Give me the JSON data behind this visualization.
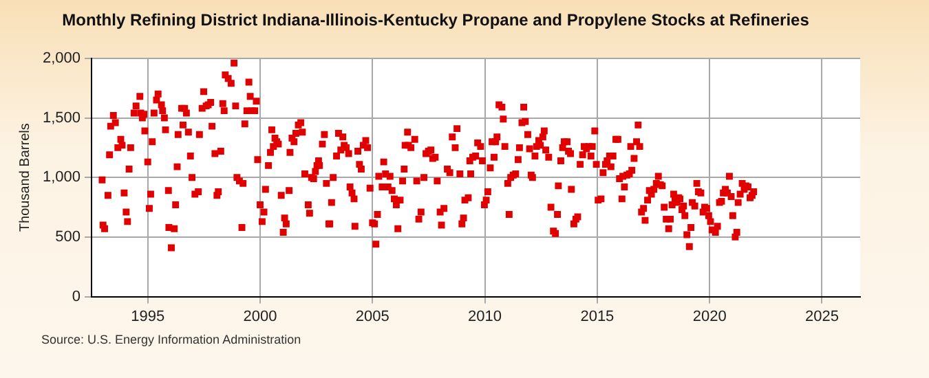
{
  "chart_data": {
    "type": "scatter",
    "title": "Monthly Refining District Indiana-Illinois-Kentucky Propane and Propylene Stocks at Refineries",
    "ylabel": "Thousand Barrels",
    "annotations": [
      "Source: U.S. Energy Information Administration"
    ],
    "color": "#e00000",
    "marker": "square",
    "grid": true,
    "legend": false,
    "xlim": [
      1992.5,
      2026.7
    ],
    "xticks": [
      1995,
      2000,
      2005,
      2010,
      2015,
      2020,
      2025
    ],
    "ylim": [
      0,
      2000
    ],
    "yticks": [
      0,
      500,
      {
        "value": 1000,
        "label": "1,000"
      },
      {
        "value": 1500,
        "label": "1,500"
      },
      {
        "value": 2000,
        "label": "2,000"
      }
    ],
    "x": [
      1992.97,
      1993.01,
      1993.08,
      1993.23,
      1993.3,
      1993.35,
      1993.47,
      1993.56,
      1993.67,
      1993.8,
      1993.86,
      1993.95,
      1994.04,
      1994.1,
      1994.17,
      1994.24,
      1994.39,
      1994.48,
      1994.65,
      1994.69,
      1994.76,
      1994.83,
      1994.87,
      1995,
      1995.07,
      1995.13,
      1995.2,
      1995.28,
      1995.39,
      1995.46,
      1995.61,
      1995.66,
      1995.74,
      1995.79,
      1995.92,
      1995.94,
      1996.05,
      1996.18,
      1996.24,
      1996.31,
      1996.35,
      1996.51,
      1996.57,
      1996.64,
      1996.72,
      1996.81,
      1996.9,
      1996.97,
      1997.1,
      1997.25,
      1997.3,
      1997.42,
      1997.49,
      1997.6,
      1997.69,
      1997.8,
      1997.86,
      1997.99,
      1998.08,
      1998.14,
      1998.25,
      1998.34,
      1998.4,
      1998.45,
      1998.58,
      1998.71,
      1998.84,
      1998.91,
      1998.97,
      1999.08,
      1999.19,
      1999.24,
      1999.32,
      1999.41,
      1999.5,
      1999.56,
      1999.65,
      1999.76,
      1999.83,
      1999.89,
      2000,
      2000.09,
      2000.17,
      2000.24,
      2000.37,
      2000.46,
      2000.52,
      2000.59,
      2000.66,
      2000.74,
      2000.81,
      2000.94,
      2001.03,
      2001.09,
      2001.16,
      2001.29,
      2001.33,
      2001.42,
      2001.51,
      2001.59,
      2001.7,
      2001.81,
      2001.88,
      2001.99,
      2002.14,
      2002.2,
      2002.29,
      2002.38,
      2002.46,
      2002.53,
      2002.6,
      2002.64,
      2002.77,
      2002.86,
      2002.95,
      2003.06,
      2003.1,
      2003.18,
      2003.25,
      2003.4,
      2003.49,
      2003.59,
      2003.68,
      2003.74,
      2003.83,
      2003.94,
      2004,
      2004.09,
      2004.18,
      2004.22,
      2004.35,
      2004.42,
      2004.5,
      2004.59,
      2004.7,
      2004.78,
      2004.89,
      2005,
      2005.09,
      2005.15,
      2005.22,
      2005.28,
      2005.43,
      2005.5,
      2005.58,
      2005.69,
      2005.78,
      2005.87,
      2005.97,
      2006.06,
      2006.13,
      2006.23,
      2006.34,
      2006.41,
      2006.45,
      2006.56,
      2006.6,
      2006.71,
      2006.88,
      2006.97,
      2007.06,
      2007.16,
      2007.29,
      2007.38,
      2007.49,
      2007.6,
      2007.68,
      2007.79,
      2007.88,
      2008.01,
      2008.07,
      2008.18,
      2008.33,
      2008.44,
      2008.55,
      2008.68,
      2008.76,
      2008.89,
      2008.98,
      2009.05,
      2009.11,
      2009.26,
      2009.33,
      2009.37,
      2009.46,
      2009.59,
      2009.68,
      2009.81,
      2009.89,
      2009.98,
      2010.06,
      2010.13,
      2010.24,
      2010.32,
      2010.41,
      2010.48,
      2010.54,
      2010.63,
      2010.76,
      2010.82,
      2010.89,
      2011.02,
      2011.08,
      2011.15,
      2011.26,
      2011.37,
      2011.48,
      2011.54,
      2011.65,
      2011.73,
      2011.8,
      2011.91,
      2011.99,
      2012.06,
      2012.12,
      2012.23,
      2012.3,
      2012.4,
      2012.47,
      2012.58,
      2012.64,
      2012.71,
      2012.84,
      2012.94,
      2013.05,
      2013.14,
      2013.23,
      2013.27,
      2013.38,
      2013.46,
      2013.53,
      2013.66,
      2013.72,
      2013.81,
      2013.85,
      2013.96,
      2014.05,
      2014.13,
      2014.24,
      2014.35,
      2014.42,
      2014.52,
      2014.63,
      2014.72,
      2014.78,
      2014.89,
      2014.96,
      2015.04,
      2015.17,
      2015.26,
      2015.37,
      2015.44,
      2015.55,
      2015.61,
      2015.7,
      2015.83,
      2015.92,
      2015.99,
      2016.1,
      2016.14,
      2016.21,
      2016.32,
      2016.43,
      2016.49,
      2016.54,
      2016.64,
      2016.75,
      2016.82,
      2016.89,
      2016.97,
      2017.06,
      2017.13,
      2017.24,
      2017.32,
      2017.41,
      2017.52,
      2017.63,
      2017.72,
      2017.81,
      2017.89,
      2017.98,
      2018.07,
      2018.18,
      2018.25,
      2018.33,
      2018.4,
      2018.46,
      2018.55,
      2018.62,
      2018.68,
      2018.77,
      2018.84,
      2018.9,
      2018.99,
      2019.1,
      2019.17,
      2019.23,
      2019.34,
      2019.43,
      2019.5,
      2019.61,
      2019.71,
      2019.78,
      2019.87,
      2019.96,
      2020.04,
      2020.11,
      2020.26,
      2020.35,
      2020.44,
      2020.53,
      2020.61,
      2020.7,
      2020.79,
      2020.88,
      2020.96,
      2021.03,
      2021.14,
      2021.21,
      2021.27,
      2021.36,
      2021.45,
      2021.54,
      2021.62,
      2021.71,
      2021.8,
      2021.89,
      2021.96
    ],
    "values": [
      980,
      600,
      570,
      850,
      1190,
      1430,
      1520,
      1460,
      1250,
      1320,
      1270,
      870,
      710,
      630,
      1070,
      1250,
      1540,
      1600,
      1680,
      1540,
      1500,
      1530,
      1390,
      1130,
      740,
      860,
      1300,
      1540,
      1650,
      1700,
      1610,
      1560,
      1500,
      1400,
      890,
      580,
      410,
      570,
      770,
      1090,
      1360,
      1580,
      1440,
      1580,
      1540,
      1380,
      1180,
      1000,
      860,
      880,
      1360,
      1580,
      1720,
      1600,
      1610,
      1630,
      1430,
      1200,
      850,
      880,
      1220,
      1620,
      1560,
      1860,
      1830,
      1790,
      1960,
      1600,
      1000,
      970,
      580,
      950,
      1450,
      1560,
      1800,
      1680,
      1560,
      1560,
      1640,
      1150,
      770,
      630,
      710,
      900,
      1100,
      1210,
      1400,
      1260,
      1330,
      1300,
      1280,
      850,
      540,
      660,
      610,
      890,
      1210,
      1330,
      1300,
      1370,
      1440,
      1460,
      1380,
      1030,
      770,
      700,
      1000,
      990,
      1050,
      1100,
      1140,
      1100,
      1280,
      1360,
      950,
      610,
      610,
      790,
      1000,
      1180,
      1370,
      1230,
      1340,
      1270,
      1250,
      1200,
      920,
      870,
      820,
      590,
      1220,
      1110,
      1070,
      1270,
      1310,
      1250,
      910,
      620,
      610,
      440,
      690,
      1010,
      920,
      1130,
      1030,
      920,
      1010,
      890,
      820,
      770,
      570,
      810,
      970,
      1070,
      1270,
      1380,
      1270,
      1250,
      1320,
      970,
      650,
      710,
      1000,
      1200,
      1220,
      1230,
      1160,
      1170,
      970,
      710,
      600,
      740,
      1070,
      1040,
      1340,
      1250,
      1410,
      1030,
      610,
      660,
      810,
      830,
      1140,
      1030,
      1170,
      1180,
      1290,
      1260,
      1140,
      770,
      810,
      880,
      1080,
      1300,
      1170,
      1300,
      1340,
      1610,
      1590,
      1490,
      1260,
      950,
      690,
      1000,
      1020,
      1030,
      1150,
      1250,
      1460,
      1590,
      1470,
      1360,
      1240,
      1020,
      1000,
      1180,
      1260,
      1310,
      1270,
      1340,
      1390,
      1230,
      1170,
      750,
      550,
      530,
      690,
      930,
      1140,
      1250,
      1300,
      1300,
      1220,
      1200,
      900,
      610,
      650,
      670,
      1110,
      1190,
      1260,
      1240,
      1260,
      1180,
      1260,
      1390,
      1110,
      810,
      820,
      1040,
      1110,
      1140,
      1180,
      1090,
      1180,
      1320,
      1320,
      990,
      820,
      1010,
      920,
      1020,
      1030,
      1260,
      1060,
      1160,
      1300,
      1440,
      1260,
      710,
      740,
      640,
      810,
      890,
      860,
      900,
      950,
      1010,
      940,
      930,
      750,
      650,
      570,
      650,
      770,
      860,
      820,
      790,
      830,
      820,
      730,
      760,
      680,
      520,
      420,
      580,
      790,
      760,
      950,
      880,
      870,
      710,
      750,
      740,
      680,
      630,
      560,
      540,
      590,
      790,
      800,
      870,
      900,
      870,
      1010,
      840,
      680,
      500,
      540,
      790,
      860,
      950,
      900,
      930,
      920,
      830,
      850,
      880
    ]
  }
}
